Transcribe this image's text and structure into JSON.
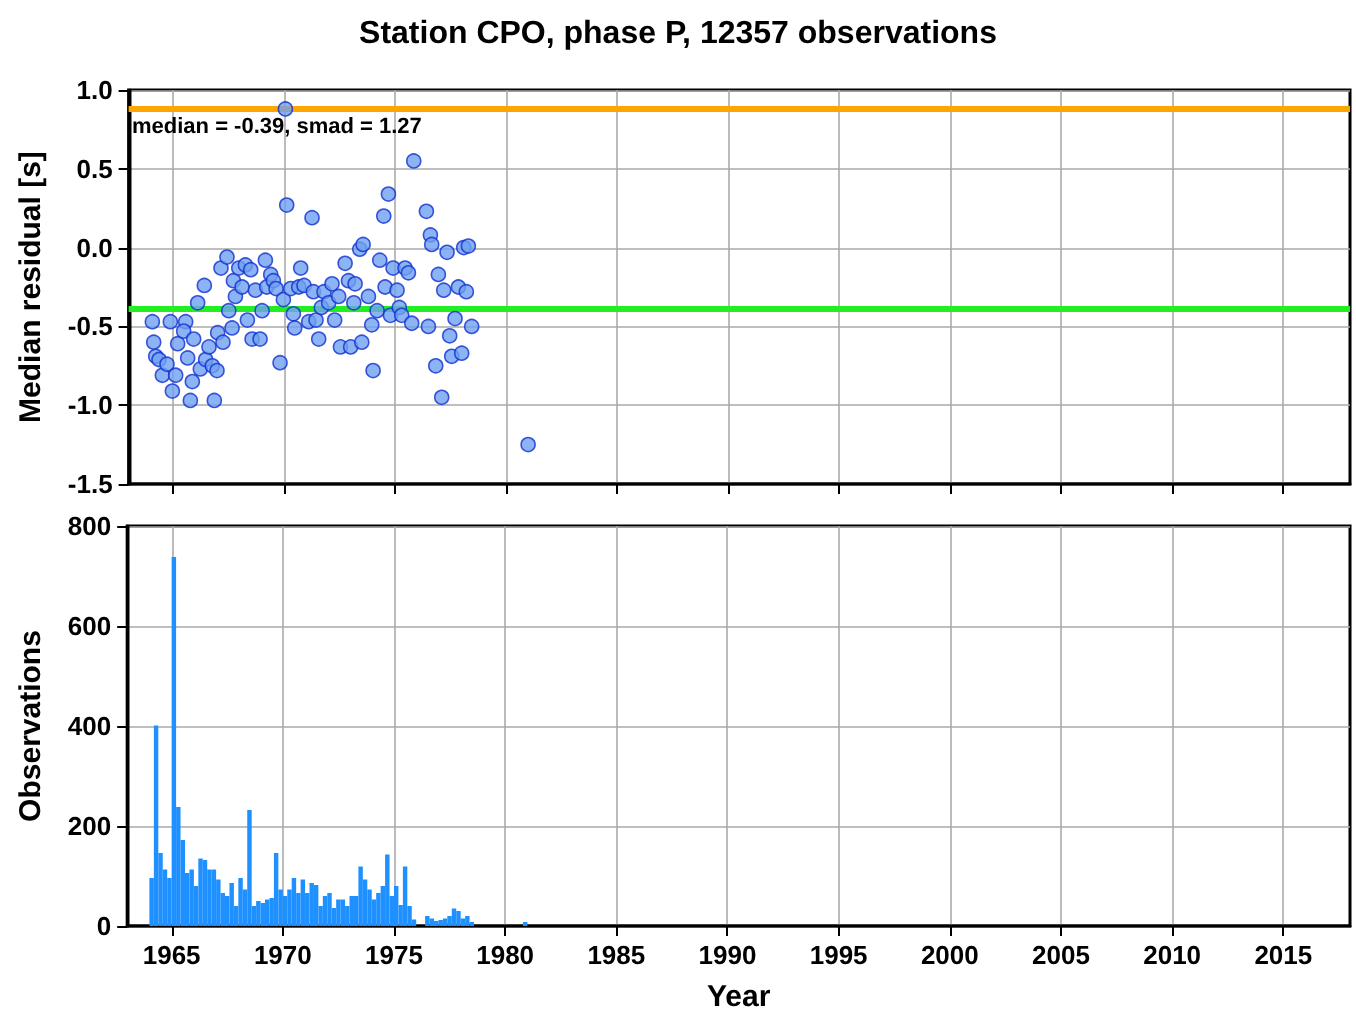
{
  "chart_data": [
    {
      "type": "scatter",
      "title": "Station CPO, phase P, 12357 observations",
      "ylabel": "Median residual [s]",
      "annotations": [
        "median = -0.39, smad = 1.27"
      ],
      "x": [
        1964.07,
        1964.88,
        1965.57,
        1964.13,
        1964.22,
        1964.37,
        1964.52,
        1964.73,
        1964.97,
        1965.12,
        1965.21,
        1965.48,
        1965.66,
        1965.78,
        1965.87,
        1965.93,
        1966.11,
        1966.23,
        1966.41,
        1966.47,
        1966.62,
        1966.77,
        1966.86,
        1966.98,
        1967.01,
        1967.16,
        1967.25,
        1967.43,
        1967.51,
        1967.66,
        1967.72,
        1967.81,
        1967.96,
        1968.11,
        1968.26,
        1968.35,
        1968.5,
        1968.56,
        1968.71,
        1968.92,
        1969.01,
        1969.16,
        1969.22,
        1969.4,
        1969.52,
        1969.64,
        1969.82,
        1969.97,
        1970.06,
        1970.12,
        1970.3,
        1970.42,
        1970.48,
        1970.66,
        1970.75,
        1970.9,
        1971.11,
        1971.26,
        1971.32,
        1971.44,
        1971.56,
        1971.68,
        1971.8,
        1972.01,
        1972.16,
        1972.28,
        1972.46,
        1972.54,
        1972.75,
        1972.9,
        1973.0,
        1973.14,
        1973.2,
        1973.41,
        1973.5,
        1973.56,
        1973.8,
        1973.95,
        1974.01,
        1974.19,
        1974.31,
        1974.49,
        1974.55,
        1974.7,
        1974.79,
        1974.91,
        1975.09,
        1975.19,
        1975.3,
        1975.45,
        1975.6,
        1975.75,
        1975.84,
        1976.41,
        1976.5,
        1976.59,
        1976.65,
        1976.83,
        1976.95,
        1977.1,
        1977.19,
        1977.34,
        1977.46,
        1977.55,
        1977.7,
        1977.85,
        1978.0,
        1978.09,
        1978.21,
        1978.3,
        1978.45,
        1980.99
      ],
      "series": [
        {
          "color": "#6fa0f0",
          "values": [
            -0.47,
            -0.47,
            -0.47,
            -0.6,
            -0.69,
            -0.71,
            -0.81,
            -0.74,
            -0.91,
            -0.81,
            -0.61,
            -0.53,
            -0.7,
            -0.97,
            -0.85,
            -0.58,
            -0.35,
            -0.77,
            -0.24,
            -0.71,
            -0.63,
            -0.75,
            -0.97,
            -0.78,
            -0.54,
            -0.13,
            -0.6,
            -0.06,
            -0.4,
            -0.51,
            -0.21,
            -0.31,
            -0.13,
            -0.25,
            -0.11,
            -0.46,
            -0.14,
            -0.58,
            -0.27,
            -0.58,
            -0.4,
            -0.08,
            -0.25,
            -0.17,
            -0.21,
            -0.26,
            -0.73,
            -0.33,
            0.88,
            0.27,
            -0.26,
            -0.42,
            -0.51,
            -0.25,
            -0.13,
            -0.24,
            -0.47,
            0.19,
            -0.28,
            -0.46,
            -0.58,
            -0.38,
            -0.28,
            -0.35,
            -0.23,
            -0.46,
            -0.31,
            -0.63,
            -0.1,
            -0.21,
            -0.63,
            -0.35,
            -0.23,
            -0.01,
            -0.6,
            0.02,
            -0.31,
            -0.49,
            -0.78,
            -0.4,
            -0.08,
            0.2,
            -0.25,
            0.34,
            -0.43,
            -0.13,
            -0.27,
            -0.38,
            -0.43,
            -0.13,
            -0.16,
            -0.48,
            0.55,
            0.23,
            -0.5,
            0.08,
            0.02,
            -0.75,
            -0.17,
            -0.95,
            -0.27,
            -0.03,
            -0.56,
            -0.69,
            -0.45,
            -0.25,
            -0.67,
            0.0,
            -0.28,
            0.01,
            -0.5,
            -1.25
          ]
        }
      ],
      "marker": "circle",
      "xlim": [
        1963,
        2018
      ],
      "xticks": [
        1965,
        1970,
        1975,
        1980,
        1985,
        1990,
        1995,
        2000,
        2005,
        2010,
        2015
      ],
      "ylim": [
        -1.5,
        1.0
      ],
      "yticks": [
        {
          "value": -1.5,
          "label": "-1.5"
        },
        {
          "value": -1,
          "label": "-1.0"
        },
        {
          "value": -0.5,
          "label": "-0.5"
        },
        {
          "value": 0,
          "label": "0.0"
        },
        {
          "value": 0.5,
          "label": "0.5"
        },
        {
          "value": 1,
          "label": "1.0"
        }
      ],
      "ref_lines": [
        {
          "axis": "y",
          "value": 0.88,
          "color": "#ffa500"
        },
        {
          "axis": "y",
          "value": -0.39,
          "color": "#22ee22"
        }
      ],
      "grid": true,
      "tick_labels": "y"
    },
    {
      "type": "histogram",
      "xlabel": "Year",
      "ylabel": "Observations",
      "color": "#1e90ff",
      "bins": [
        1964.0,
        1964.2,
        1964.4,
        1964.6,
        1964.8,
        1965.0,
        1965.2,
        1965.4,
        1965.6,
        1965.8,
        1966.0,
        1966.2,
        1966.4,
        1966.6,
        1966.8,
        1967.0,
        1967.2,
        1967.4,
        1967.6,
        1967.8,
        1968.0,
        1968.2,
        1968.4,
        1968.6,
        1968.8,
        1969.0,
        1969.2,
        1969.4,
        1969.6,
        1969.8,
        1970.0,
        1970.2,
        1970.4,
        1970.6,
        1970.8,
        1971.0,
        1971.2,
        1971.4,
        1971.6,
        1971.8,
        1972.0,
        1972.2,
        1972.4,
        1972.6,
        1972.8,
        1973.0,
        1973.2,
        1973.4,
        1973.6,
        1973.8,
        1974.0,
        1974.2,
        1974.4,
        1974.6,
        1974.8,
        1975.0,
        1975.2,
        1975.4,
        1975.6,
        1975.8,
        1976.0,
        1976.4,
        1976.6,
        1976.8,
        1977.0,
        1977.2,
        1977.4,
        1977.6,
        1977.8,
        1978.0,
        1978.2,
        1978.4,
        1978.6,
        1980.8,
        1981.0
      ],
      "values": [
        96,
        401,
        146,
        113,
        96,
        738,
        238,
        172,
        106,
        113,
        80,
        135,
        132,
        113,
        113,
        93,
        66,
        60,
        86,
        40,
        96,
        73,
        232,
        40,
        50,
        46,
        53,
        56,
        146,
        73,
        60,
        73,
        96,
        66,
        93,
        66,
        86,
        82,
        40,
        60,
        66,
        36,
        53,
        53,
        40,
        60,
        60,
        119,
        93,
        73,
        53,
        66,
        80,
        143,
        60,
        80,
        42,
        119,
        40,
        13,
        0,
        20,
        15,
        10,
        12,
        15,
        20,
        35,
        30,
        15,
        20,
        8,
        0,
        8
      ],
      "xlim": [
        1963,
        2018
      ],
      "xticks": [
        1965,
        1970,
        1975,
        1980,
        1985,
        1990,
        1995,
        2000,
        2005,
        2010,
        2015
      ],
      "ylim": [
        0,
        800
      ],
      "yticks": [
        0,
        200,
        400,
        600,
        800
      ],
      "grid": true
    }
  ]
}
